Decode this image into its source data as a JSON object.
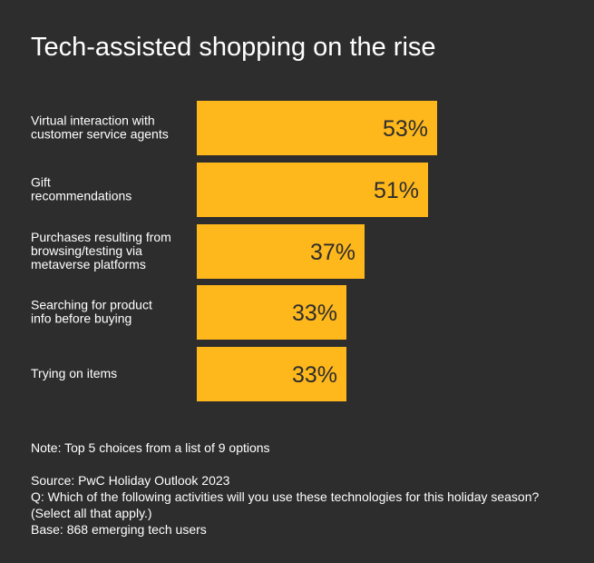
{
  "chart_data": {
    "type": "bar",
    "orientation": "horizontal",
    "title": "Tech-assisted shopping on the rise",
    "categories": [
      [
        "Virtual interaction with",
        "customer service agents"
      ],
      [
        "Gift",
        "recommendations"
      ],
      [
        "Purchases resulting from",
        "browsing/testing via",
        "metaverse platforms"
      ],
      [
        "Searching for product",
        "info before buying"
      ],
      [
        "Trying on items"
      ]
    ],
    "values": [
      53,
      51,
      37,
      33,
      33
    ],
    "value_labels": [
      "53%",
      "51%",
      "37%",
      "33%",
      "33%"
    ],
    "unit": "%",
    "xlim": [
      0,
      53
    ],
    "grid": false,
    "legend": "none"
  },
  "colors": {
    "background": "#2d2d2d",
    "bar": "#ffb81c",
    "text": "#ffffff",
    "bar_label": "#2d2d2d"
  },
  "notes": {
    "note": "Note: Top 5 choices from a list of 9 options",
    "source": "Source: PwC Holiday Outlook 2023",
    "question": "Q: Which of the following activities will you use these technologies for this holiday season?",
    "select": "(Select all that apply.)",
    "base": "Base: 868 emerging tech users"
  }
}
